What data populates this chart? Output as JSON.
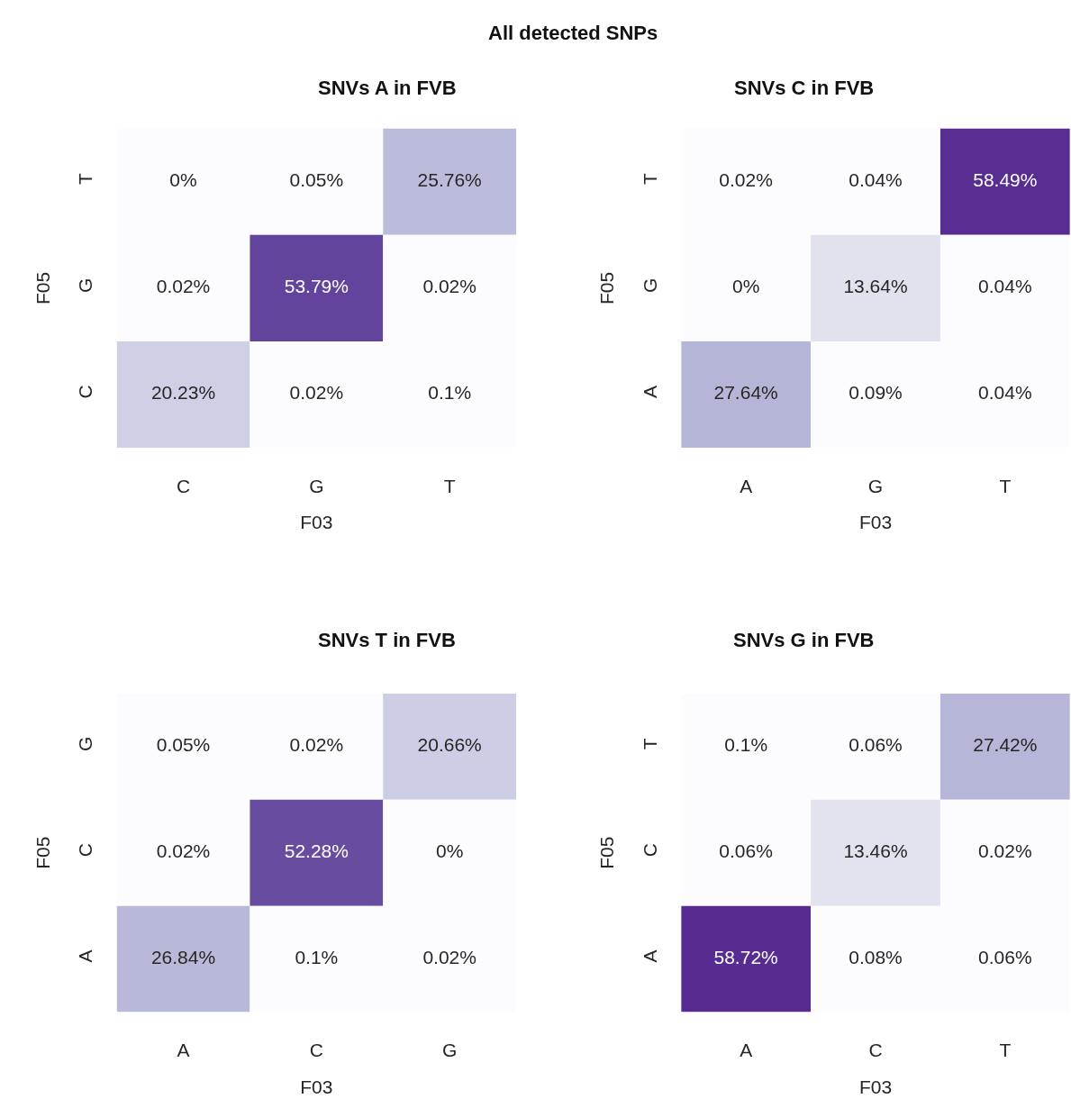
{
  "chart_data": [
    {
      "type": "other",
      "title": "All detected SNPs"
    },
    {
      "type": "heatmap",
      "title": "SNVs A in FVB",
      "xlabel": "F03",
      "ylabel": "F05",
      "categories": [
        "C",
        "G",
        "T"
      ],
      "y_categories": [
        "T",
        "G",
        "C"
      ],
      "cells": [
        [
          0,
          0.05,
          25.76
        ],
        [
          0.02,
          53.79,
          0.02
        ],
        [
          20.23,
          0.02,
          0.1
        ]
      ],
      "cell_labels": [
        [
          "0%",
          "0.05%",
          "25.76%"
        ],
        [
          "0.02%",
          "53.79%",
          "0.02%"
        ],
        [
          "20.23%",
          "0.02%",
          "0.1%"
        ]
      ]
    },
    {
      "type": "heatmap",
      "title": "SNVs C in FVB",
      "xlabel": "F03",
      "ylabel": "F05",
      "categories": [
        "A",
        "G",
        "T"
      ],
      "y_categories": [
        "T",
        "G",
        "A"
      ],
      "cells": [
        [
          0.02,
          0.04,
          58.49
        ],
        [
          0,
          13.64,
          0.04
        ],
        [
          27.64,
          0.09,
          0.04
        ]
      ],
      "cell_labels": [
        [
          "0.02%",
          "0.04%",
          "58.49%"
        ],
        [
          "0%",
          "13.64%",
          "0.04%"
        ],
        [
          "27.64%",
          "0.09%",
          "0.04%"
        ]
      ]
    },
    {
      "type": "heatmap",
      "title": "SNVs T in FVB",
      "xlabel": "F03",
      "ylabel": "F05",
      "categories": [
        "A",
        "C",
        "G"
      ],
      "y_categories": [
        "G",
        "C",
        "A"
      ],
      "cells": [
        [
          0.05,
          0.02,
          20.66
        ],
        [
          0.02,
          52.28,
          0
        ],
        [
          26.84,
          0.1,
          0.02
        ]
      ],
      "cell_labels": [
        [
          "0.05%",
          "0.02%",
          "20.66%"
        ],
        [
          "0.02%",
          "52.28%",
          "0%"
        ],
        [
          "26.84%",
          "0.1%",
          "0.02%"
        ]
      ]
    },
    {
      "type": "heatmap",
      "title": "SNVs G in FVB",
      "xlabel": "F03",
      "ylabel": "F05",
      "categories": [
        "A",
        "C",
        "T"
      ],
      "y_categories": [
        "T",
        "C",
        "A"
      ],
      "cells": [
        [
          0.1,
          0.06,
          27.42
        ],
        [
          0.06,
          13.46,
          0.02
        ],
        [
          58.72,
          0.08,
          0.06
        ]
      ],
      "cell_labels": [
        [
          "0.1%",
          "0.06%",
          "27.42%"
        ],
        [
          "0.06%",
          "13.46%",
          "0.02%"
        ],
        [
          "58.72%",
          "0.08%",
          "0.06%"
        ]
      ]
    }
  ]
}
